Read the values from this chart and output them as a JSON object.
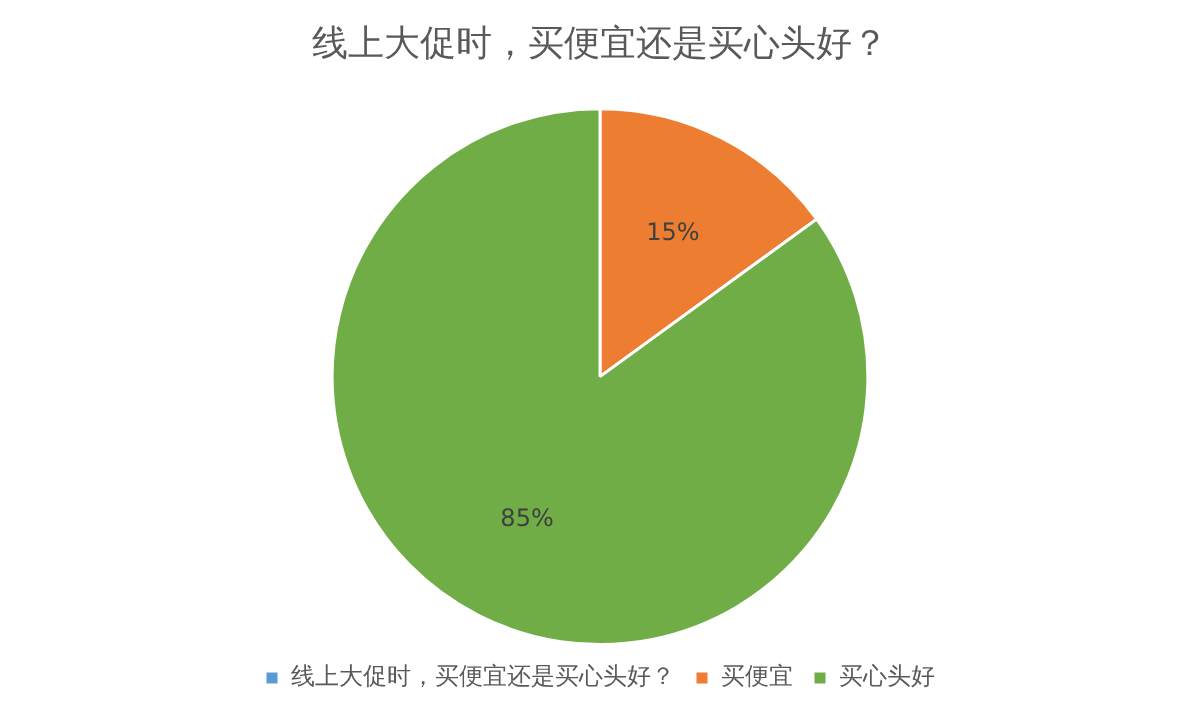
{
  "chart_data": {
    "type": "pie",
    "title": "线上大促时，买便宜还是买心头好？",
    "categories": [
      "线上大促时，买便宜还是买心头好？",
      "买便宜",
      "买心头好"
    ],
    "values": [
      0,
      15,
      85
    ],
    "colors": [
      "#5b9bd5",
      "#ed7d31",
      "#70ad47"
    ],
    "value_labels": [
      null,
      "15%",
      "85%"
    ],
    "legend": "bottom"
  }
}
